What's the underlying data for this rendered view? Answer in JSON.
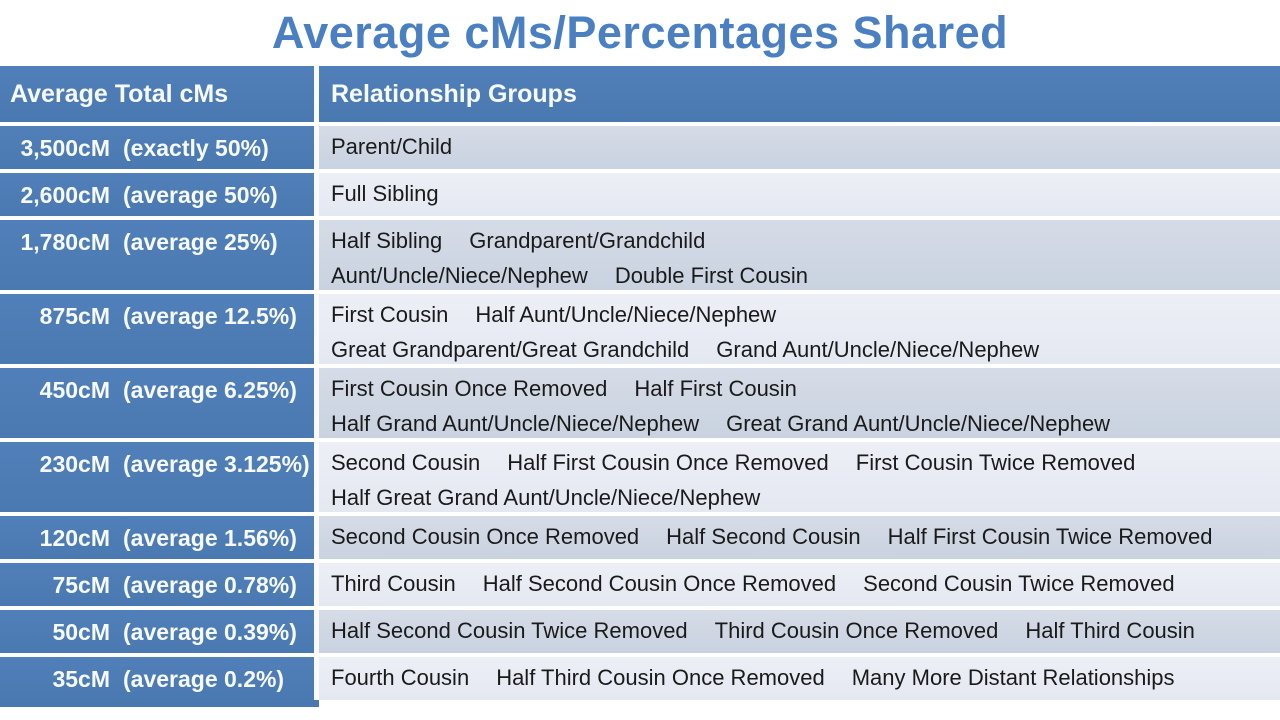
{
  "colors": {
    "title_blue": "#4a7fc2",
    "header_blue": "#4d7cb6",
    "stripe_dark": "#cdd5e2",
    "stripe_light": "#e8ebf3",
    "separator_white": "#f8fafc",
    "body_text": "#1a1a1a",
    "header_text": "#f6fafd"
  },
  "chart_data": {
    "type": "table",
    "title": "Average cMs/Percentages Shared",
    "columns": [
      "Average Total cMs",
      "Relationship Groups"
    ],
    "rows": [
      {
        "cm_label": "3,500cM",
        "percent_label": "(exactly 50%)",
        "cm": 3500,
        "percent": 50,
        "percent_qualifier": "exactly",
        "relationship_lines": [
          [
            "Parent/Child"
          ]
        ]
      },
      {
        "cm_label": "2,600cM",
        "percent_label": "(average 50%)",
        "cm": 2600,
        "percent": 50,
        "percent_qualifier": "average",
        "relationship_lines": [
          [
            "Full Sibling"
          ]
        ]
      },
      {
        "cm_label": "1,780cM",
        "percent_label": "(average 25%)",
        "cm": 1780,
        "percent": 25,
        "percent_qualifier": "average",
        "relationship_lines": [
          [
            "Half Sibling",
            "Grandparent/Grandchild"
          ],
          [
            "Aunt/Uncle/Niece/Nephew",
            "Double First Cousin"
          ]
        ]
      },
      {
        "cm_label": "875cM",
        "percent_label": "(average 12.5%)",
        "cm": 875,
        "percent": 12.5,
        "percent_qualifier": "average",
        "relationship_lines": [
          [
            "First Cousin",
            "Half Aunt/Uncle/Niece/Nephew"
          ],
          [
            "Great Grandparent/Great Grandchild",
            "Grand Aunt/Uncle/Niece/Nephew"
          ]
        ]
      },
      {
        "cm_label": "450cM",
        "percent_label": "(average 6.25%)",
        "cm": 450,
        "percent": 6.25,
        "percent_qualifier": "average",
        "relationship_lines": [
          [
            "First Cousin Once Removed",
            "Half First Cousin"
          ],
          [
            "Half Grand Aunt/Uncle/Niece/Nephew",
            "Great Grand Aunt/Uncle/Niece/Nephew"
          ]
        ]
      },
      {
        "cm_label": "230cM",
        "percent_label": "(average 3.125%)",
        "cm": 230,
        "percent": 3.125,
        "percent_qualifier": "average",
        "relationship_lines": [
          [
            "Second Cousin",
            "Half First Cousin Once Removed",
            "First Cousin Twice Removed"
          ],
          [
            "Half Great Grand Aunt/Uncle/Niece/Nephew"
          ]
        ]
      },
      {
        "cm_label": "120cM",
        "percent_label": "(average 1.56%)",
        "cm": 120,
        "percent": 1.56,
        "percent_qualifier": "average",
        "relationship_lines": [
          [
            "Second Cousin Once Removed",
            "Half Second Cousin",
            "Half First Cousin Twice Removed"
          ]
        ]
      },
      {
        "cm_label": "75cM",
        "percent_label": "(average 0.78%)",
        "cm": 75,
        "percent": 0.78,
        "percent_qualifier": "average",
        "relationship_lines": [
          [
            "Third Cousin",
            "Half Second Cousin Once Removed",
            "Second Cousin Twice Removed"
          ]
        ]
      },
      {
        "cm_label": "50cM",
        "percent_label": "(average 0.39%)",
        "cm": 50,
        "percent": 0.39,
        "percent_qualifier": "average",
        "relationship_lines": [
          [
            "Half Second Cousin Twice Removed",
            "Third Cousin Once Removed",
            "Half Third Cousin"
          ]
        ]
      },
      {
        "cm_label": "35cM",
        "percent_label": "(average 0.2%)",
        "cm": 35,
        "percent": 0.2,
        "percent_qualifier": "average",
        "relationship_lines": [
          [
            "Fourth Cousin",
            "Half Third Cousin Once Removed",
            "Many More Distant Relationships"
          ]
        ]
      }
    ]
  }
}
